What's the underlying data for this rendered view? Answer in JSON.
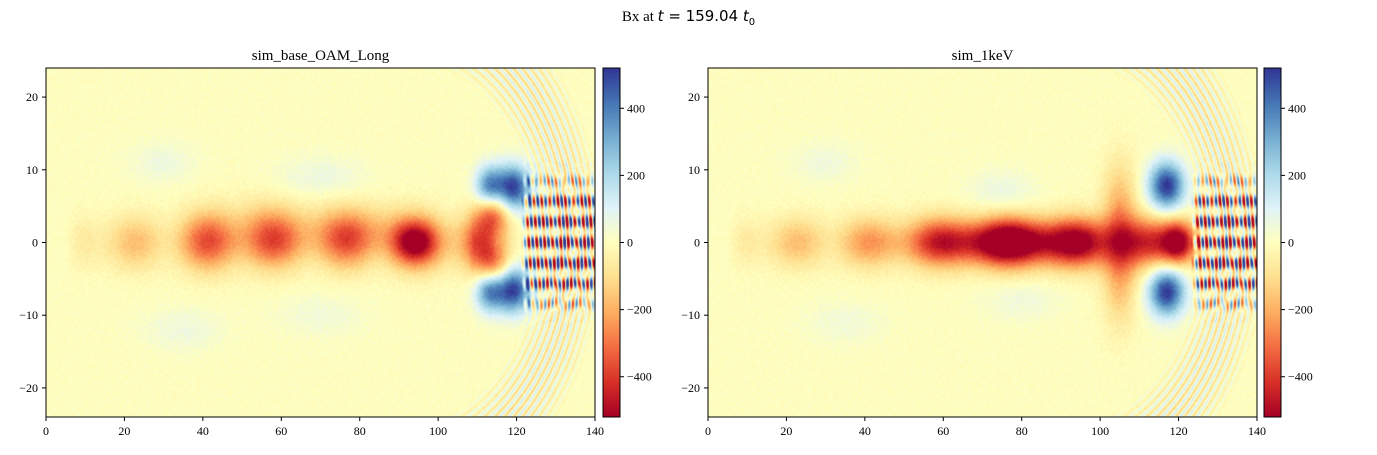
{
  "suptitle": {
    "prefix": "Bx at ",
    "var": "t",
    "eq": " = 159.04 ",
    "unit": "t",
    "unit_sub": "0"
  },
  "colors": {
    "colormap": "RdYlBu",
    "stops": [
      "#a50026",
      "#d73027",
      "#f46d43",
      "#fdae61",
      "#fee090",
      "#ffffbf",
      "#e0f3f8",
      "#abd9e9",
      "#74add1",
      "#4575b4",
      "#313695"
    ]
  },
  "chart_data": [
    {
      "type": "heatmap",
      "title": "sim_base_OAM_Long",
      "xlabel": "",
      "ylabel": "",
      "xlim": [
        0,
        140
      ],
      "ylim": [
        -24,
        24
      ],
      "xticks": [
        0,
        20,
        40,
        60,
        80,
        100,
        120,
        140
      ],
      "yticks": [
        -20,
        -10,
        0,
        10,
        20
      ],
      "colorbar": {
        "range": [
          -520,
          520
        ],
        "ticks": [
          -400,
          -200,
          0,
          200,
          400
        ]
      },
      "features": [
        {
          "kind": "axis_channel",
          "x": [
            8,
            112
          ],
          "amplitude": [
            -120,
            -330
          ],
          "width": 2.6
        },
        {
          "kind": "blob",
          "x": 42,
          "y": 0.5,
          "sx": 5,
          "sy": 3,
          "value": -160
        },
        {
          "kind": "blob",
          "x": 56,
          "y": 1.5,
          "sx": 6,
          "sy": 3,
          "value": -150
        },
        {
          "kind": "blob",
          "x": 78,
          "y": 2,
          "sx": 10,
          "sy": 2.5,
          "value": -130
        },
        {
          "kind": "blob",
          "x": 94,
          "y": 0,
          "sx": 4,
          "sy": 2,
          "value": -260
        },
        {
          "kind": "blob",
          "x": 114,
          "y": 4,
          "sx": 3,
          "sy": 2.5,
          "value": -380
        },
        {
          "kind": "blob",
          "x": 114,
          "y": -3,
          "sx": 3,
          "sy": 2.5,
          "value": -360
        },
        {
          "kind": "blob",
          "x": 119,
          "y": 7.5,
          "sx": 3.2,
          "sy": 2.2,
          "value": 520
        },
        {
          "kind": "blob",
          "x": 113,
          "y": 7.5,
          "sx": 2.5,
          "sy": 2.0,
          "value": 420
        },
        {
          "kind": "blob",
          "x": 119,
          "y": -6.5,
          "sx": 3.2,
          "sy": 2.2,
          "value": 520
        },
        {
          "kind": "blob",
          "x": 113,
          "y": -6.5,
          "sx": 2.5,
          "sy": 2.0,
          "value": 420
        },
        {
          "kind": "blob",
          "x": 30,
          "y": 11,
          "sx": 6,
          "sy": 2,
          "value": 55
        },
        {
          "kind": "blob",
          "x": 70,
          "y": 9,
          "sx": 8,
          "sy": 2,
          "value": 60
        },
        {
          "kind": "blob",
          "x": 35,
          "y": -12,
          "sx": 7,
          "sy": 2,
          "value": 55
        },
        {
          "kind": "blob",
          "x": 70,
          "y": -10,
          "sx": 8,
          "sy": 2,
          "value": 45
        },
        {
          "kind": "oscillation",
          "x": [
            121,
            140
          ],
          "y": [
            -9,
            9
          ],
          "value": 520
        },
        {
          "kind": "arc_ripples",
          "center_x": 90,
          "radius": [
            35,
            53
          ],
          "value": 90
        }
      ]
    },
    {
      "type": "heatmap",
      "title": "sim_1keV",
      "xlabel": "",
      "ylabel": "",
      "xlim": [
        0,
        140
      ],
      "ylim": [
        -24,
        24
      ],
      "xticks": [
        0,
        20,
        40,
        60,
        80,
        100,
        120,
        140
      ],
      "yticks": [
        -20,
        -10,
        0,
        10,
        20
      ],
      "colorbar": {
        "range": [
          -520,
          520
        ],
        "ticks": [
          -400,
          -200,
          0,
          200,
          400
        ]
      },
      "features": [
        {
          "kind": "axis_channel",
          "x": [
            8,
            122
          ],
          "amplitude": [
            -120,
            -340
          ],
          "width": 2.4
        },
        {
          "kind": "blob",
          "x": 78,
          "y": 0,
          "sx": 17,
          "sy": 2.2,
          "value": -460
        },
        {
          "kind": "blob",
          "x": 105,
          "y": 4,
          "sx": 3,
          "sy": 5,
          "value": -180
        },
        {
          "kind": "blob",
          "x": 105,
          "y": -4,
          "sx": 3,
          "sy": 5,
          "value": -180
        },
        {
          "kind": "blob",
          "x": 120,
          "y": 0,
          "sx": 3,
          "sy": 2,
          "value": -480
        },
        {
          "kind": "blob",
          "x": 117,
          "y": 7.8,
          "sx": 3.2,
          "sy": 2.3,
          "value": 520
        },
        {
          "kind": "blob",
          "x": 117,
          "y": -6.8,
          "sx": 3.2,
          "sy": 2.3,
          "value": 520
        },
        {
          "kind": "blob",
          "x": 30,
          "y": 11,
          "sx": 6,
          "sy": 2,
          "value": 50
        },
        {
          "kind": "blob",
          "x": 75,
          "y": 7,
          "sx": 6,
          "sy": 2,
          "value": 65
        },
        {
          "kind": "blob",
          "x": 35,
          "y": -11,
          "sx": 7,
          "sy": 2,
          "value": 45
        },
        {
          "kind": "blob",
          "x": 80,
          "y": -8,
          "sx": 7,
          "sy": 2,
          "value": 50
        },
        {
          "kind": "oscillation",
          "x": [
            123,
            140
          ],
          "y": [
            -9,
            9
          ],
          "value": 520
        },
        {
          "kind": "arc_ripples",
          "center_x": 90,
          "radius": [
            35,
            53
          ],
          "value": 90
        }
      ]
    }
  ]
}
